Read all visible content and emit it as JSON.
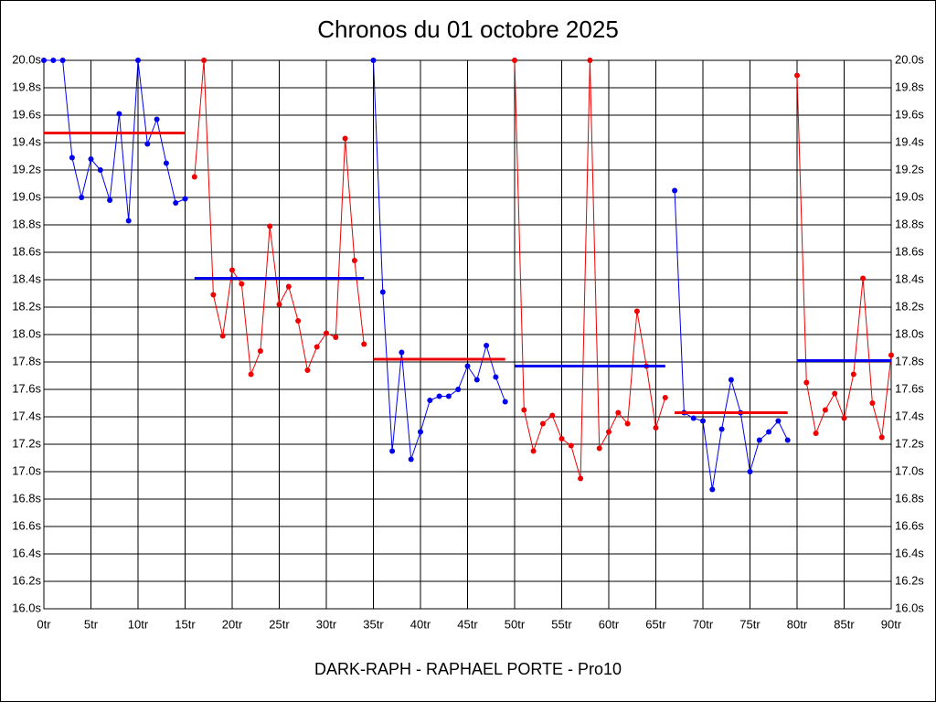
{
  "chart_data": {
    "type": "line",
    "title": "Chronos du 01 octobre 2025",
    "footer": "DARK-RAPH - RAPHAEL PORTE - Pro10",
    "xlim": [
      0,
      90
    ],
    "ylim": [
      16,
      20
    ],
    "grid": true,
    "xticks": [
      {
        "value": 0,
        "label": "0tr"
      },
      {
        "value": 5,
        "label": "5tr"
      },
      {
        "value": 10,
        "label": "10tr"
      },
      {
        "value": 15,
        "label": "15tr"
      },
      {
        "value": 20,
        "label": "20tr"
      },
      {
        "value": 25,
        "label": "25tr"
      },
      {
        "value": 30,
        "label": "30tr"
      },
      {
        "value": 35,
        "label": "35tr"
      },
      {
        "value": 40,
        "label": "40tr"
      },
      {
        "value": 45,
        "label": "45tr"
      },
      {
        "value": 50,
        "label": "50tr"
      },
      {
        "value": 55,
        "label": "55tr"
      },
      {
        "value": 60,
        "label": "60tr"
      },
      {
        "value": 65,
        "label": "65tr"
      },
      {
        "value": 70,
        "label": "70tr"
      },
      {
        "value": 75,
        "label": "75tr"
      },
      {
        "value": 80,
        "label": "80tr"
      },
      {
        "value": 85,
        "label": "85tr"
      },
      {
        "value": 90,
        "label": "90tr"
      }
    ],
    "yticks": [
      {
        "value": 16,
        "label": "16.0s"
      },
      {
        "value": 16.2,
        "label": "16.2s"
      },
      {
        "value": 16.4,
        "label": "16.4s"
      },
      {
        "value": 16.6,
        "label": "16.6s"
      },
      {
        "value": 16.8,
        "label": "16.8s"
      },
      {
        "value": 17,
        "label": "17.0s"
      },
      {
        "value": 17.2,
        "label": "17.2s"
      },
      {
        "value": 17.4,
        "label": "17.4s"
      },
      {
        "value": 17.6,
        "label": "17.6s"
      },
      {
        "value": 17.8,
        "label": "17.8s"
      },
      {
        "value": 18,
        "label": "18.0s"
      },
      {
        "value": 18.2,
        "label": "18.2s"
      },
      {
        "value": 18.4,
        "label": "18.4s"
      },
      {
        "value": 18.6,
        "label": "18.6s"
      },
      {
        "value": 18.8,
        "label": "18.8s"
      },
      {
        "value": 19,
        "label": "19.0s"
      },
      {
        "value": 19.2,
        "label": "19.2s"
      },
      {
        "value": 19.4,
        "label": "19.4s"
      },
      {
        "value": 19.6,
        "label": "19.6s"
      },
      {
        "value": 19.8,
        "label": "19.8s"
      },
      {
        "value": 20,
        "label": "20.0s"
      }
    ],
    "series": [
      {
        "color": "#0000ee",
        "x": [
          0,
          1,
          2,
          3,
          4,
          5,
          6,
          7,
          8,
          9,
          10,
          11,
          12,
          13,
          14,
          15
        ],
        "values": [
          20,
          20,
          20,
          19.29,
          19,
          19.28,
          19.2,
          18.98,
          19.61,
          18.83,
          20,
          19.39,
          19.57,
          19.25,
          18.96,
          18.99
        ]
      },
      {
        "color": "#ee0000",
        "x": [
          16,
          17,
          18,
          19,
          20,
          21,
          22,
          23,
          24,
          25,
          26,
          27,
          28,
          29,
          30,
          31,
          32,
          33,
          34
        ],
        "values": [
          19.15,
          20,
          18.29,
          17.99,
          18.47,
          18.37,
          17.71,
          17.88,
          18.79,
          18.22,
          18.35,
          18.1,
          17.74,
          17.91,
          18.01,
          17.98,
          19.43,
          18.54,
          17.93
        ]
      },
      {
        "color": "#0000ee",
        "x": [
          35,
          36,
          37,
          38,
          39,
          40,
          41,
          42,
          43,
          44,
          45,
          46,
          47,
          48,
          49
        ],
        "values": [
          20,
          18.31,
          17.15,
          17.87,
          17.09,
          17.29,
          17.52,
          17.55,
          17.55,
          17.6,
          17.77,
          17.67,
          17.92,
          17.69,
          17.51
        ]
      },
      {
        "color": "#ee0000",
        "x": [
          50,
          51,
          52,
          53,
          54,
          55,
          56,
          57,
          58,
          59,
          60,
          61,
          62,
          63,
          64,
          65,
          66
        ],
        "values": [
          20,
          17.45,
          17.15,
          17.35,
          17.41,
          17.24,
          17.19,
          16.95,
          20,
          17.17,
          17.29,
          17.43,
          17.35,
          18.17,
          17.77,
          17.32,
          17.54
        ]
      },
      {
        "color": "#0000ee",
        "x": [
          67,
          68,
          69,
          70,
          71,
          72,
          73,
          74,
          75,
          76,
          77,
          78,
          79
        ],
        "values": [
          19.05,
          17.43,
          17.39,
          17.37,
          16.87,
          17.31,
          17.67,
          17.43,
          17,
          17.23,
          17.29,
          17.37,
          17.23
        ]
      },
      {
        "color": "#ee0000",
        "x": [
          80,
          81,
          82,
          83,
          84,
          85,
          86,
          87,
          88,
          89,
          90
        ],
        "values": [
          19.89,
          17.65,
          17.28,
          17.45,
          17.57,
          17.39,
          17.71,
          18.41,
          17.5,
          17.25,
          17.85
        ]
      }
    ],
    "means": [
      {
        "color": "#ee0000",
        "value": 19.47,
        "from": 0,
        "to": 15
      },
      {
        "color": "#0000ee",
        "value": 18.41,
        "from": 16,
        "to": 34
      },
      {
        "color": "#ee0000",
        "value": 17.82,
        "from": 35,
        "to": 49
      },
      {
        "color": "#0000ee",
        "value": 17.77,
        "from": 50,
        "to": 66
      },
      {
        "color": "#ee0000",
        "value": 17.43,
        "from": 67,
        "to": 79
      },
      {
        "color": "#0000ee",
        "value": 17.81,
        "from": 80,
        "to": 90
      }
    ]
  }
}
